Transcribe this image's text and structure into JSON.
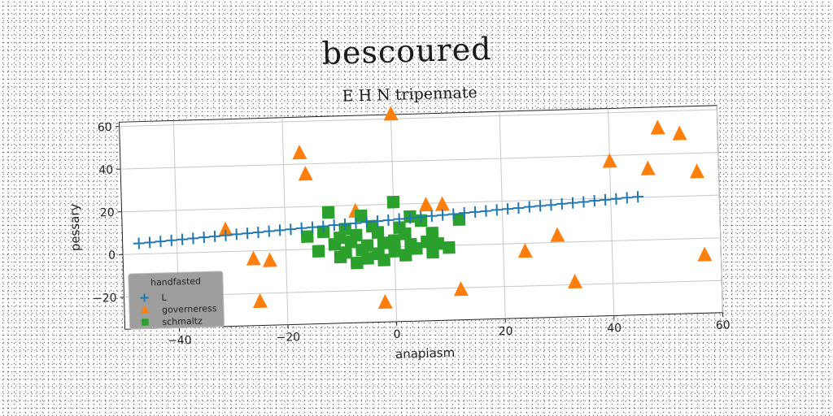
{
  "chart_data": {
    "type": "scatter",
    "suptitle": "bescoured",
    "title": "E H N tripennate",
    "xlabel": "anapiasm",
    "ylabel": "pessary",
    "xlim": [
      -50,
      60
    ],
    "ylim": [
      -35,
      62
    ],
    "xticks": [
      -40,
      -20,
      0,
      20,
      40,
      60
    ],
    "yticks": [
      -20,
      0,
      20,
      40,
      60
    ],
    "grid": true,
    "legend": {
      "title": "handfasted",
      "placement": "lower-left"
    },
    "series": [
      {
        "name": "L",
        "marker": "plus",
        "color": "#1f77b4",
        "points": [
          [
            -47,
            5
          ],
          [
            -45,
            5.3
          ],
          [
            -43,
            5.6
          ],
          [
            -41,
            6
          ],
          [
            -39,
            6.3
          ],
          [
            -37,
            6.6
          ],
          [
            -35,
            7
          ],
          [
            -33,
            7.3
          ],
          [
            -31,
            7.6
          ],
          [
            -29,
            8
          ],
          [
            -27,
            8.3
          ],
          [
            -25,
            8.6
          ],
          [
            -23,
            9
          ],
          [
            -21,
            9.3
          ],
          [
            -19,
            9.6
          ],
          [
            -17,
            10
          ],
          [
            -15,
            10.3
          ],
          [
            -13,
            10.6
          ],
          [
            -11,
            11
          ],
          [
            -9,
            11.3
          ],
          [
            -7,
            11.6
          ],
          [
            -5,
            12
          ],
          [
            -3,
            12.3
          ],
          [
            -1,
            12.6
          ],
          [
            1,
            13
          ],
          [
            3,
            13.3
          ],
          [
            5,
            13.6
          ],
          [
            7,
            14
          ],
          [
            9,
            14.3
          ],
          [
            11,
            14.6
          ],
          [
            13,
            15
          ],
          [
            15,
            15.3
          ],
          [
            17,
            15.6
          ],
          [
            19,
            16
          ],
          [
            21,
            16.3
          ],
          [
            23,
            16.6
          ],
          [
            25,
            17
          ],
          [
            27,
            17.3
          ],
          [
            29,
            17.6
          ],
          [
            31,
            18
          ],
          [
            33,
            18.3
          ],
          [
            35,
            18.6
          ],
          [
            37,
            19
          ],
          [
            39,
            19.3
          ],
          [
            41,
            19.6
          ],
          [
            43,
            20
          ],
          [
            45,
            20.3
          ]
        ]
      },
      {
        "name": "governeress",
        "marker": "triangle",
        "color": "#ff7f0e",
        "points": [
          [
            0,
            62
          ],
          [
            -17,
            45
          ],
          [
            -16,
            35
          ],
          [
            -31,
            10
          ],
          [
            -26,
            -4
          ],
          [
            -23,
            -5
          ],
          [
            -25,
            -24
          ],
          [
            -7,
            17
          ],
          [
            6,
            19
          ],
          [
            9,
            19
          ],
          [
            -2,
            -26
          ],
          [
            12,
            -21
          ],
          [
            24,
            -4
          ],
          [
            30,
            3
          ],
          [
            33,
            -19
          ],
          [
            40,
            37
          ],
          [
            47,
            33
          ],
          [
            49,
            52
          ],
          [
            53,
            49
          ],
          [
            56,
            31
          ],
          [
            57,
            -8
          ]
        ]
      },
      {
        "name": "schmaltz",
        "marker": "square",
        "color": "#2ca02c",
        "points": [
          [
            0,
            21
          ],
          [
            -12,
            17
          ],
          [
            -6,
            15
          ],
          [
            3,
            14
          ],
          [
            5,
            12
          ],
          [
            12,
            12
          ],
          [
            -13,
            8
          ],
          [
            -9,
            9
          ],
          [
            -4,
            10
          ],
          [
            1,
            9
          ],
          [
            -16,
            6
          ],
          [
            -10,
            5
          ],
          [
            -7,
            6
          ],
          [
            -3,
            7
          ],
          [
            2,
            6
          ],
          [
            7,
            6
          ],
          [
            -11,
            2
          ],
          [
            -8,
            3
          ],
          [
            -5,
            1
          ],
          [
            -2,
            2
          ],
          [
            0,
            3
          ],
          [
            3,
            1
          ],
          [
            6,
            2
          ],
          [
            8,
            1
          ],
          [
            -14,
            -1
          ],
          [
            -9,
            -2
          ],
          [
            -6,
            -1
          ],
          [
            -3,
            -3
          ],
          [
            0,
            -2
          ],
          [
            4,
            -1
          ],
          [
            7,
            -3
          ],
          [
            10,
            -1
          ],
          [
            -10,
            -4
          ],
          [
            -5,
            -5
          ],
          [
            -2,
            -6
          ],
          [
            2,
            -4
          ],
          [
            -7,
            -7
          ]
        ]
      }
    ]
  }
}
